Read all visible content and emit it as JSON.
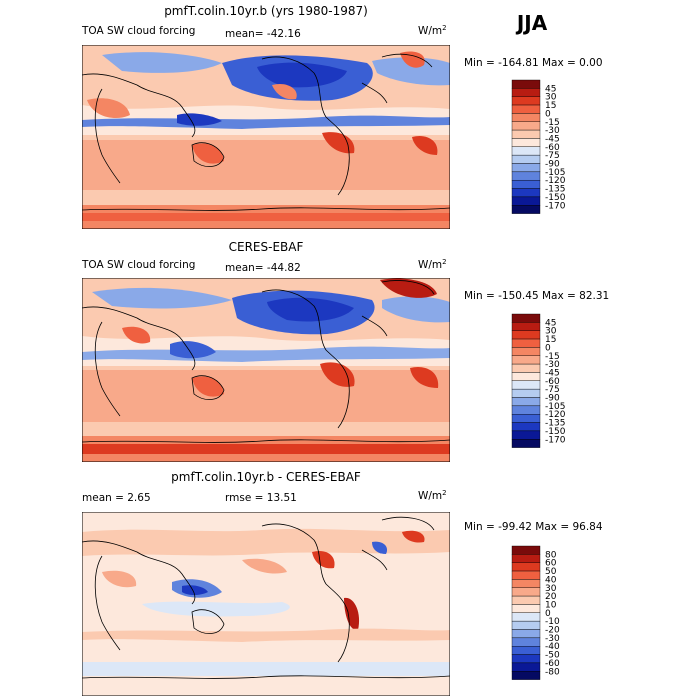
{
  "season": "JJA",
  "chart_data": [
    {
      "type": "heatmap",
      "title": "pmfT.colin.10yr.b (yrs 1980-1987)",
      "field_label": "TOA SW cloud forcing",
      "stat_text": "mean= -42.16",
      "units_base": "W/m",
      "units_exp": "2",
      "range_text": "Min = -164.81 Max =   0.00",
      "colorbar_levels": [
        "45",
        "30",
        "15",
        "0",
        "-15",
        "-30",
        "-45",
        "-60",
        "-75",
        "-90",
        "-105",
        "-120",
        "-135",
        "-150",
        "-170"
      ],
      "colorbar_colors": [
        "#7a0b0b",
        "#b81c12",
        "#dd3a20",
        "#ef6040",
        "#f48663",
        "#f8a98a",
        "#fbcab0",
        "#fde8dc",
        "#dce7f7",
        "#b5ccf0",
        "#8aa9e8",
        "#5f83dd",
        "#3a5fd4",
        "#1c38c0",
        "#0a1896",
        "#050a62"
      ]
    },
    {
      "type": "heatmap",
      "title": "CERES-EBAF",
      "field_label": "TOA SW cloud forcing",
      "stat_text": "mean= -44.82",
      "units_base": "W/m",
      "units_exp": "2",
      "range_text": "Min = -150.45 Max =  82.31",
      "colorbar_levels": [
        "45",
        "30",
        "15",
        "0",
        "-15",
        "-30",
        "-45",
        "-60",
        "-75",
        "-90",
        "-105",
        "-120",
        "-135",
        "-150",
        "-170"
      ],
      "colorbar_colors": [
        "#7a0b0b",
        "#b81c12",
        "#dd3a20",
        "#ef6040",
        "#f48663",
        "#f8a98a",
        "#fbcab0",
        "#fde8dc",
        "#dce7f7",
        "#b5ccf0",
        "#8aa9e8",
        "#5f83dd",
        "#3a5fd4",
        "#1c38c0",
        "#0a1896",
        "#050a62"
      ]
    },
    {
      "type": "heatmap",
      "title": "pmfT.colin.10yr.b - CERES-EBAF",
      "mean_text": "mean =    2.65",
      "rmse_text": "rmse =   13.51",
      "units_base": "W/m",
      "units_exp": "2",
      "range_text": "Min = -99.42 Max =  96.84",
      "colorbar_levels": [
        "80",
        "60",
        "50",
        "40",
        "30",
        "20",
        "10",
        "0",
        "-10",
        "-20",
        "-30",
        "-40",
        "-50",
        "-60",
        "-80"
      ],
      "colorbar_colors": [
        "#7a0b0b",
        "#b81c12",
        "#dd3a20",
        "#ef6040",
        "#f48663",
        "#f8a98a",
        "#fbcab0",
        "#fde8dc",
        "#dce7f7",
        "#b5ccf0",
        "#8aa9e8",
        "#5f83dd",
        "#3a5fd4",
        "#1c38c0",
        "#0a1896",
        "#050a62"
      ]
    }
  ]
}
